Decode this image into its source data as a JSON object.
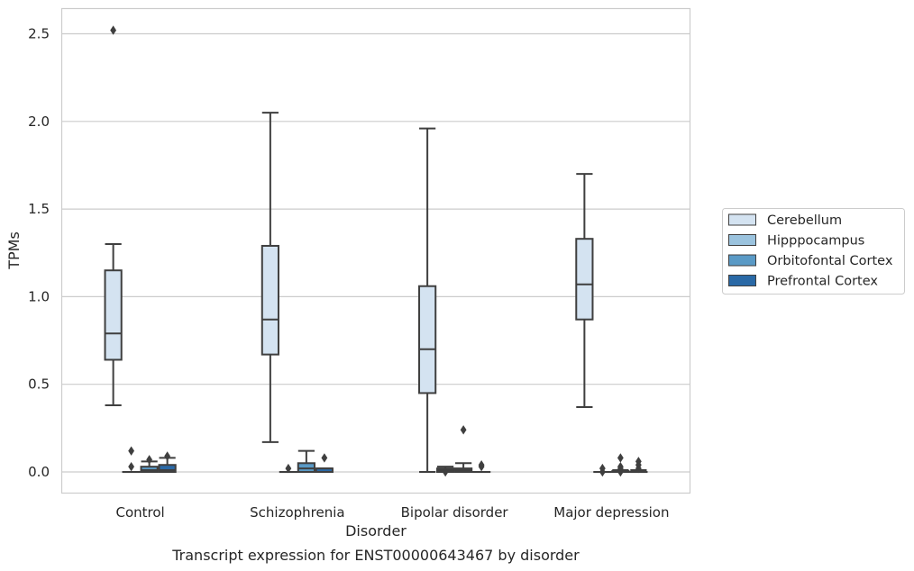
{
  "chart_data": {
    "type": "boxplot",
    "xlabel": "Disorder",
    "ylabel": "TPMs",
    "caption": "Transcript expression for ENST00000643467 by disorder",
    "ylim": [
      -0.12,
      2.65
    ],
    "yticks": [
      "0.0",
      "0.5",
      "1.0",
      "1.5",
      "2.0",
      "2.5"
    ],
    "ytick_values": [
      0,
      0.5,
      1.0,
      1.5,
      2.0,
      2.5
    ],
    "grid": true,
    "legend_position": "right",
    "categories": [
      "Control",
      "Schizophrenia",
      "Bipolar disorder",
      "Major depression"
    ],
    "series": [
      {
        "name": "Cerebellum",
        "color": "#d4e3f1",
        "boxes": [
          {
            "whislo": 0.38,
            "q1": 0.64,
            "med": 0.79,
            "q3": 1.15,
            "whishi": 1.3,
            "fliers": [
              2.52
            ]
          },
          {
            "whislo": 0.17,
            "q1": 0.67,
            "med": 0.87,
            "q3": 1.29,
            "whishi": 2.05,
            "fliers": []
          },
          {
            "whislo": 0.0,
            "q1": 0.45,
            "med": 0.7,
            "q3": 1.06,
            "whishi": 1.96,
            "fliers": []
          },
          {
            "whislo": 0.37,
            "q1": 0.87,
            "med": 1.07,
            "q3": 1.33,
            "whishi": 1.7,
            "fliers": []
          }
        ]
      },
      {
        "name": "Hipppocampus",
        "color": "#9bc3de",
        "boxes": [
          {
            "whislo": 0.0,
            "q1": 0.0,
            "med": 0.0,
            "q3": 0.0,
            "whishi": 0.0,
            "fliers": [
              0.03,
              0.12
            ]
          },
          {
            "whislo": 0.0,
            "q1": 0.0,
            "med": 0.0,
            "q3": 0.0,
            "whishi": 0.0,
            "fliers": [
              0.02
            ]
          },
          {
            "whislo": 0.0,
            "q1": 0.0,
            "med": 0.01,
            "q3": 0.02,
            "whishi": 0.03,
            "fliers": []
          },
          {
            "whislo": 0.0,
            "q1": 0.0,
            "med": 0.0,
            "q3": 0.0,
            "whishi": 0.0,
            "fliers": [
              0.0
            ]
          }
        ]
      },
      {
        "name": "Orbitofontal Cortex",
        "color": "#5a9ac6",
        "boxes": [
          {
            "whislo": 0.0,
            "q1": 0.0,
            "med": 0.01,
            "q3": 0.03,
            "whishi": 0.06,
            "fliers": [
              0.07
            ]
          },
          {
            "whislo": 0.0,
            "q1": 0.0,
            "med": 0.02,
            "q3": 0.05,
            "whishi": 0.12,
            "fliers": []
          },
          {
            "whislo": 0.0,
            "q1": 0.0,
            "med": 0.01,
            "q3": 0.02,
            "whishi": 0.05,
            "fliers": [
              0.24
            ]
          },
          {
            "whislo": 0.0,
            "q1": 0.0,
            "med": 0.0,
            "q3": 0.005,
            "whishi": 0.01,
            "fliers": [
              0.02,
              0.0
            ]
          }
        ]
      },
      {
        "name": "Prefrontal Cortex",
        "color": "#2a69a6",
        "boxes": [
          {
            "whislo": 0.0,
            "q1": 0.0,
            "med": 0.01,
            "q3": 0.04,
            "whishi": 0.08,
            "fliers": [
              0.09
            ]
          },
          {
            "whislo": 0.0,
            "q1": 0.0,
            "med": 0.0,
            "q3": 0.02,
            "whishi": 0.02,
            "fliers": [
              0.08
            ]
          },
          {
            "whislo": 0.0,
            "q1": 0.0,
            "med": 0.0,
            "q3": 0.0,
            "whishi": 0.0,
            "fliers": [
              0.03,
              0.04
            ]
          },
          {
            "whislo": 0.0,
            "q1": 0.0,
            "med": 0.0,
            "q3": 0.0,
            "whishi": 0.01,
            "fliers": [
              0.02,
              0.04,
              0.06
            ]
          }
        ]
      }
    ],
    "extra_fliers": [
      {
        "category": 2,
        "series": 1,
        "values": [
          0.0
        ]
      },
      {
        "category": 3,
        "series": 1,
        "values": [
          0.02
        ]
      },
      {
        "category": 3,
        "series": 2,
        "values": [
          0.03,
          0.08
        ]
      }
    ]
  }
}
